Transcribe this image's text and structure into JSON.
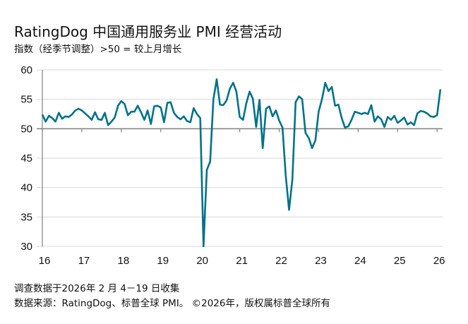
{
  "title": "RatingDog 中国通用服务业 PMI 经营活动",
  "subtitle": "指数（经季节调整）>50 = 较上月增长",
  "footer": {
    "survey_note": "调查数据于2026年 2 月 4－19 日收集",
    "source": "数据来源：RatingDog、标普全球 PMI。 ©2026年，版权属标普全球所有"
  },
  "chart_data": {
    "type": "line",
    "title": "RatingDog 中国通用服务业 PMI 经营活动",
    "xlabel": "",
    "ylabel": "",
    "ylim": [
      30,
      60
    ],
    "yticks": [
      "30",
      "35",
      "40",
      "45",
      "50",
      "55",
      "60"
    ],
    "xticks": [
      "16",
      "17",
      "18",
      "19",
      "20",
      "21",
      "22",
      "23",
      "24",
      "25",
      "26"
    ],
    "x_start": "2016-01",
    "x_end": "2026-02",
    "frequency": "monthly",
    "reference_line": 50,
    "grid": true,
    "line_color": "#00718a",
    "values": [
      52.4,
      51.2,
      52.2,
      51.8,
      51.2,
      52.7,
      51.7,
      52.1,
      52.0,
      52.4,
      53.1,
      53.4,
      53.1,
      52.6,
      52.1,
      51.5,
      52.8,
      51.6,
      51.5,
      52.7,
      50.6,
      51.2,
      51.9,
      53.9,
      54.7,
      54.2,
      52.3,
      52.9,
      52.9,
      53.9,
      52.8,
      51.5,
      53.1,
      50.8,
      53.8,
      53.9,
      53.6,
      51.1,
      54.4,
      54.5,
      52.7,
      52.0,
      51.6,
      52.1,
      51.3,
      51.1,
      53.5,
      52.5,
      51.8,
      26.5,
      43.0,
      44.4,
      55.0,
      58.4,
      54.1,
      54.0,
      54.8,
      56.8,
      57.8,
      56.3,
      52.0,
      51.5,
      54.3,
      56.3,
      55.1,
      50.3,
      54.9,
      46.7,
      53.4,
      53.8,
      52.1,
      53.1,
      51.4,
      50.2,
      42.0,
      36.2,
      41.4,
      54.5,
      55.5,
      55.0,
      49.3,
      48.4,
      46.7,
      48.0,
      52.9,
      55.0,
      57.8,
      56.4,
      57.1,
      53.9,
      54.1,
      51.8,
      50.2,
      50.4,
      51.5,
      52.9,
      52.7,
      52.5,
      52.7,
      52.5,
      54.0,
      51.2,
      52.1,
      51.6,
      50.3,
      52.0,
      51.5,
      52.2,
      51.0,
      51.4,
      51.9,
      50.7,
      51.1,
      50.6,
      52.6,
      53.0,
      52.9,
      52.6,
      52.1,
      52.0,
      52.3,
      56.7
    ]
  }
}
